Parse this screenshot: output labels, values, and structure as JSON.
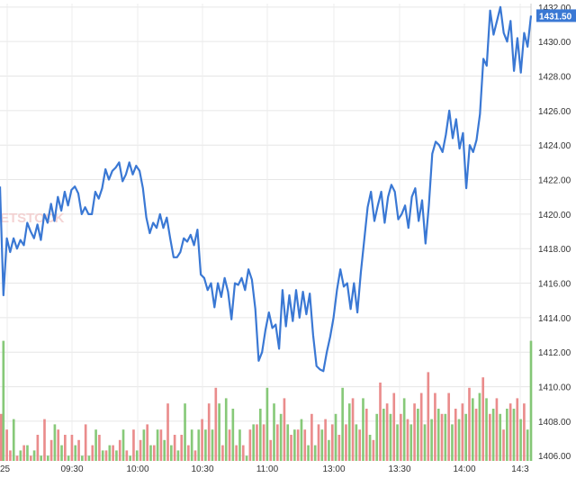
{
  "chart_data": {
    "type": "line",
    "x_tick_labels": [
      "25",
      "09:30",
      "10:00",
      "10:30",
      "11:00",
      "13:00",
      "13:30",
      "14:00",
      "14:3"
    ],
    "y_tick_labels": [
      "1406.00",
      "1408.00",
      "1410.00",
      "1412.00",
      "1414.00",
      "1416.00",
      "1418.00",
      "1420.00",
      "1422.00",
      "1424.00",
      "1426.00",
      "1428.00",
      "1430.00",
      "1432.00"
    ],
    "ylim": [
      1405.7,
      1432.2
    ],
    "price_series": {
      "color": "#3a78d4",
      "values": [
        1421.6,
        1415.3,
        1418.6,
        1417.8,
        1418.6,
        1418.0,
        1418.5,
        1418.2,
        1419.5,
        1419.0,
        1418.6,
        1419.4,
        1418.5,
        1420.0,
        1419.5,
        1420.6,
        1419.6,
        1421.0,
        1420.2,
        1421.3,
        1420.5,
        1421.4,
        1421.6,
        1421.2,
        1420.0,
        1420.4,
        1420.0,
        1420.0,
        1421.3,
        1420.9,
        1421.5,
        1422.6,
        1422.0,
        1422.5,
        1422.7,
        1423.0,
        1421.9,
        1422.3,
        1423.0,
        1422.3,
        1422.8,
        1422.5,
        1421.5,
        1419.8,
        1418.9,
        1419.5,
        1419.2,
        1420.0,
        1419.2,
        1419.8,
        1418.6,
        1417.5,
        1417.5,
        1417.8,
        1418.6,
        1418.4,
        1418.8,
        1418.2,
        1419.1,
        1416.5,
        1416.3,
        1415.6,
        1416.0,
        1414.6,
        1416.0,
        1415.2,
        1416.3,
        1415.5,
        1413.9,
        1416.0,
        1415.9,
        1416.3,
        1415.6,
        1416.8,
        1416.2,
        1414.5,
        1411.5,
        1412.0,
        1413.3,
        1414.3,
        1413.4,
        1413.6,
        1412.2,
        1415.6,
        1413.5,
        1415.3,
        1413.8,
        1415.6,
        1414.0,
        1415.5,
        1414.2,
        1415.4,
        1413.0,
        1411.2,
        1411.0,
        1410.9,
        1412.0,
        1412.9,
        1414.0,
        1415.6,
        1416.8,
        1415.8,
        1416.0,
        1414.5,
        1416.0,
        1414.3,
        1416.6,
        1418.5,
        1420.4,
        1421.3,
        1419.6,
        1420.5,
        1421.3,
        1419.5,
        1421.0,
        1421.7,
        1421.3,
        1419.7,
        1420.0,
        1420.5,
        1419.2,
        1421.0,
        1421.5,
        1419.6,
        1420.8,
        1418.3,
        1420.5,
        1423.5,
        1424.2,
        1424.0,
        1423.6,
        1424.6,
        1426.0,
        1424.4,
        1425.5,
        1423.8,
        1424.7,
        1421.5,
        1424.0,
        1423.6,
        1424.3,
        1425.8,
        1429.0,
        1428.6,
        1431.8,
        1430.4,
        1431.2,
        1432.0,
        1430.5,
        1430.0,
        1431.2,
        1428.3,
        1430.2,
        1428.2,
        1430.5,
        1429.7,
        1431.5
      ]
    },
    "volume_series": {
      "up_color": "#7ac36a",
      "down_color": "#e87f80",
      "values": [
        0.9,
        2.3,
        0.6,
        0.2,
        0.8,
        0.1,
        0.2,
        0.3,
        0.3,
        0.1,
        0.2,
        0.5,
        0.1,
        0.8,
        0.1,
        0.4,
        0.7,
        0.6,
        0.3,
        0.5,
        0.1,
        0.5,
        0.3,
        0.4,
        0.1,
        0.7,
        0.1,
        0.3,
        0.6,
        0.5,
        0.2,
        0.2,
        0.3,
        0.3,
        0.2,
        0.4,
        0.6,
        0.2,
        0.1,
        0.6,
        0.2,
        0.4,
        0.6,
        0.7,
        0.3,
        0.3,
        0.6,
        0.6,
        0.4,
        1.1,
        0.3,
        0.5,
        0.2,
        0.5,
        1.1,
        0.3,
        0.6,
        0.2,
        0.6,
        0.8,
        0.6,
        1.1,
        0.6,
        1.4,
        1.1,
        0.3,
        1.2,
        0.6,
        1.0,
        0.3,
        0.6,
        0.3,
        0.1,
        0.6,
        0.7,
        0.7,
        1.0,
        0.7,
        1.4,
        0.4,
        1.1,
        0.7,
        0.9,
        1.2,
        0.7,
        0.5,
        0.6,
        0.6,
        0.8,
        0.6,
        0.3,
        0.9,
        0.3,
        0.7,
        0.6,
        0.8,
        0.4,
        0.7,
        0.9,
        0.5,
        1.4,
        0.7,
        1.1,
        1.2,
        0.7,
        0.6,
        1.2,
        1.0,
        0.5,
        0.4,
        0.9,
        1.5,
        1.0,
        1.1,
        0.9,
        1.3,
        0.7,
        0.9,
        1.2,
        0.8,
        0.7,
        1.1,
        1.0,
        1.3,
        0.7,
        1.7,
        0.8,
        1.3,
        1.0,
        0.9,
        0.9,
        1.3,
        0.7,
        1.0,
        0.8,
        1.1,
        0.9,
        1.4,
        1.2,
        1.0,
        1.3,
        1.6,
        1.2,
        0.9,
        1.0,
        1.2,
        0.9,
        0.6,
        1.0,
        1.1,
        1.0,
        1.2,
        0.8,
        1.1,
        0.6,
        2.3
      ],
      "colors": [
        "d",
        "u",
        "d",
        "d",
        "u",
        "d",
        "u",
        "d",
        "u",
        "d",
        "u",
        "d",
        "u",
        "d",
        "u",
        "d",
        "u",
        "d",
        "u",
        "d",
        "u",
        "d",
        "u",
        "d",
        "u",
        "d",
        "u",
        "d",
        "u",
        "d",
        "u",
        "d",
        "u",
        "d",
        "u",
        "d",
        "u",
        "d",
        "u",
        "d",
        "u",
        "d",
        "u",
        "d",
        "u",
        "d",
        "u",
        "d",
        "u",
        "d",
        "u",
        "d",
        "u",
        "d",
        "u",
        "d",
        "u",
        "d",
        "u",
        "d",
        "u",
        "d",
        "u",
        "d",
        "u",
        "d",
        "u",
        "d",
        "u",
        "d",
        "u",
        "d",
        "u",
        "d",
        "u",
        "d",
        "u",
        "d",
        "u",
        "d",
        "u",
        "d",
        "u",
        "d",
        "u",
        "d",
        "u",
        "d",
        "u",
        "d",
        "u",
        "d",
        "u",
        "d",
        "u",
        "d",
        "u",
        "d",
        "u",
        "d",
        "u",
        "d",
        "u",
        "d",
        "u",
        "d",
        "u",
        "d",
        "u",
        "d",
        "u",
        "d",
        "u",
        "d",
        "u",
        "d",
        "u",
        "d",
        "u",
        "d",
        "u",
        "d",
        "u",
        "d",
        "u",
        "d",
        "u",
        "d",
        "u",
        "d",
        "u",
        "d",
        "u",
        "d",
        "u",
        "d",
        "u",
        "d",
        "u",
        "d",
        "u",
        "d",
        "u",
        "d",
        "u",
        "d",
        "u",
        "d",
        "u",
        "d",
        "u",
        "d",
        "u",
        "d",
        "u",
        "u"
      ]
    },
    "current_price_label": "1431.50",
    "current_price_value": 1431.5,
    "grid": true,
    "watermark_text": "ETSTOCK"
  }
}
